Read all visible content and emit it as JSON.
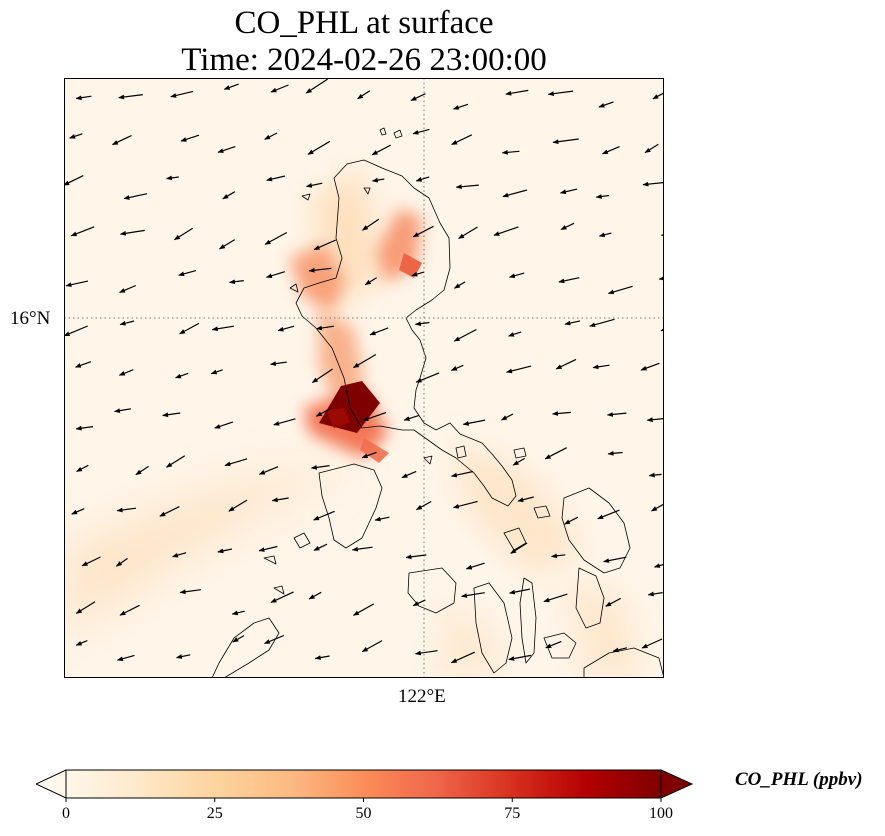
{
  "title": {
    "line1": "CO_PHL at surface",
    "line2": "Time: 2024-02-26 23:00:00"
  },
  "axes": {
    "lat_tick": "16°N",
    "lon_tick": "122°E"
  },
  "colorbar": {
    "label": "CO_PHL (ppbv)",
    "ticks": [
      "0",
      "25",
      "50",
      "75",
      "100"
    ],
    "range": [
      0,
      100
    ],
    "extend": "both",
    "colormap": "OrRd",
    "colors": [
      "#fff7ec",
      "#fee8c8",
      "#fdd49e",
      "#fdbb84",
      "#fc8d59",
      "#ef6548",
      "#d7301f",
      "#b30000",
      "#7f0000"
    ]
  },
  "map": {
    "gridlines": "dotted",
    "coastlines": true,
    "wind_vectors": true,
    "wind_direction": "north-east monsoon, arrows pointing south-west"
  }
}
